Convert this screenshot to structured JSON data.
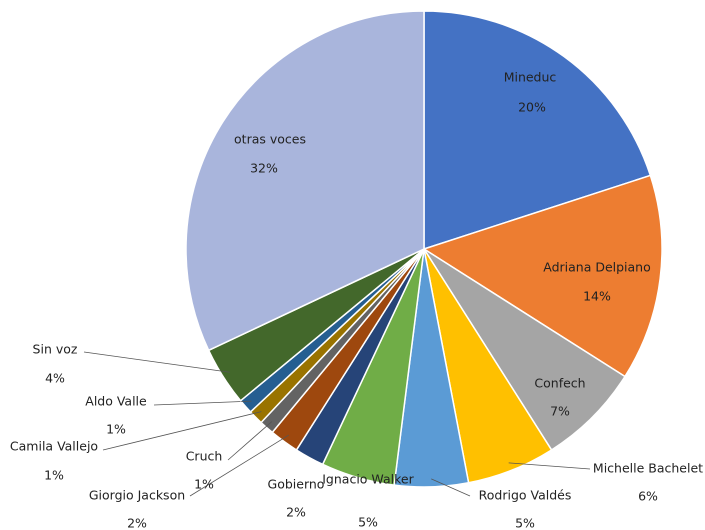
{
  "chart_data": {
    "type": "pie",
    "categories": [
      "Mineduc",
      "Adriana Delpiano",
      "Confech",
      "Michelle Bachelet",
      "Rodrigo Valdés",
      "Ignacio Walker",
      "Gobierno",
      "Giorgio Jackson",
      "Cruch",
      "Camila Vallejo",
      "Aldo Valle",
      "Sin voz",
      "otras voces"
    ],
    "values": [
      20,
      14,
      7,
      6,
      5,
      5,
      2,
      2,
      1,
      1,
      1,
      4,
      32
    ],
    "value_labels": [
      "20%",
      "14%",
      "7%",
      "6%",
      "5%",
      "5%",
      "2%",
      "2%",
      "1%",
      "1%",
      "1%",
      "4%",
      "32%"
    ],
    "colors": [
      "#4472c4",
      "#ed7d31",
      "#a5a5a5",
      "#ffc000",
      "#5b9bd5",
      "#70ad47",
      "#264478",
      "#9e480e",
      "#636363",
      "#997300",
      "#255e91",
      "#43682b",
      "#a9b5dc"
    ]
  }
}
